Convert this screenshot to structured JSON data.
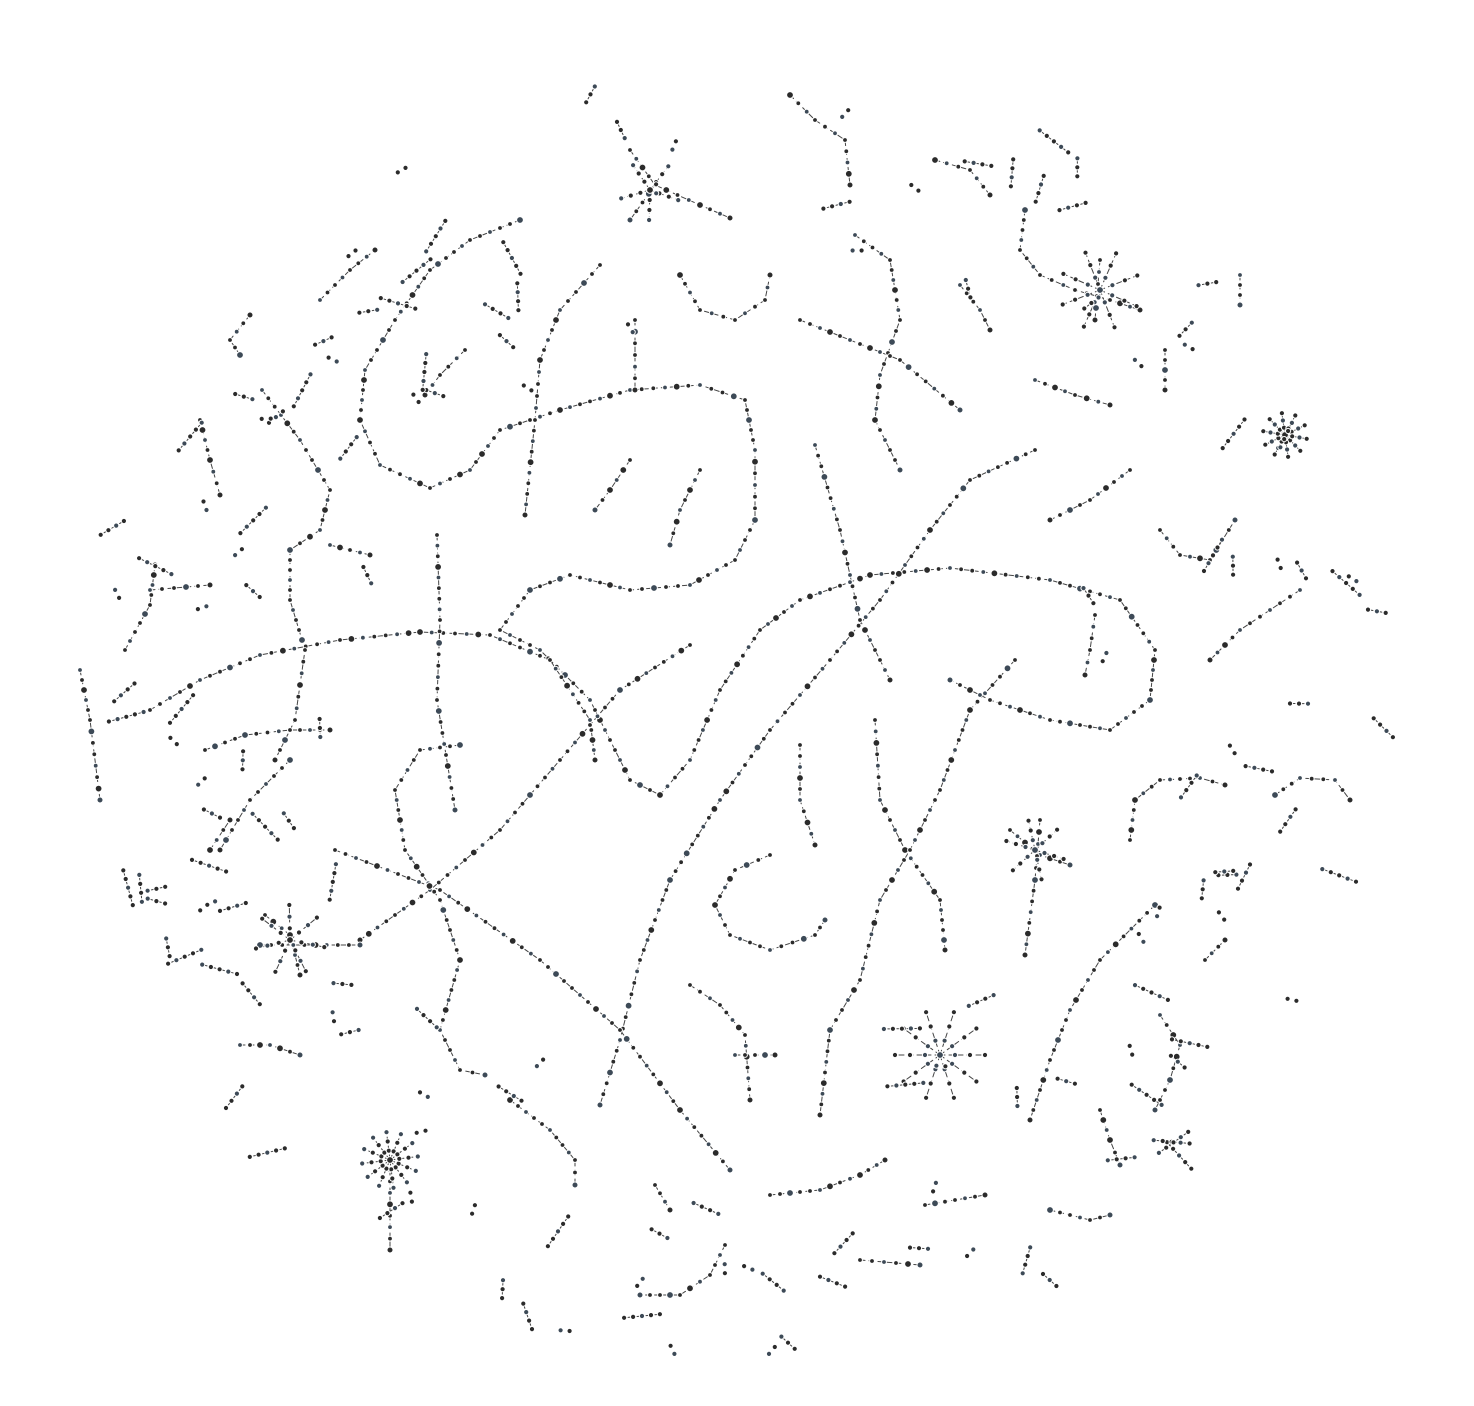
{
  "diagram": {
    "type": "network-graph",
    "colors": {
      "background": "#ffffff",
      "node_fill": "#2b2b2b",
      "node_fill_alt": "#3d4a57",
      "node_outline": "#ffffff",
      "edge": "#444444"
    }
  }
}
